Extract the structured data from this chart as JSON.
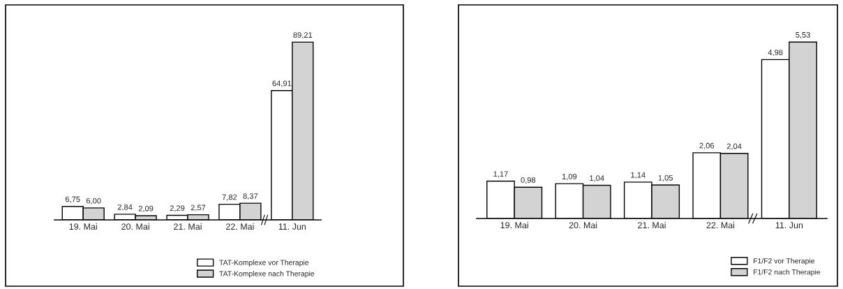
{
  "chart_data": [
    {
      "type": "bar",
      "categories": [
        "19. Mai",
        "20. Mai",
        "21. Mai",
        "22. Mai",
        "11. Jun"
      ],
      "legend": "bottom right",
      "series": [
        {
          "name": "TAT-Komplexe vor Therapie",
          "color": "#ffffff",
          "values": [
            6.75,
            2.84,
            2.29,
            7.82,
            64.91
          ],
          "value_labels": [
            "6,75",
            "2,84",
            "2,29",
            "7,82",
            "64,91"
          ]
        },
        {
          "name": "TAT-Komplexe nach Therapie",
          "color": "#d3d3d3",
          "values": [
            6.0,
            2.09,
            2.57,
            8.37,
            89.21
          ],
          "value_labels": [
            "6,00",
            "2,09",
            "2,57",
            "8,37",
            "89,21"
          ]
        }
      ]
    },
    {
      "type": "bar",
      "categories": [
        "19. Mai",
        "20. Mai",
        "21. Mai",
        "22. Mai",
        "11. Jun"
      ],
      "legend": "bottom right",
      "series": [
        {
          "name": "F1/F2 vor Therapie",
          "color": "#ffffff",
          "values": [
            1.17,
            1.09,
            1.14,
            2.06,
            4.98
          ],
          "value_labels": [
            "1,17",
            "1,09",
            "1,14",
            "2,06",
            "4,98"
          ]
        },
        {
          "name": "F1/F2 nach Therapie",
          "color": "#d3d3d3",
          "values": [
            0.98,
            1.04,
            1.05,
            2.04,
            5.53
          ],
          "value_labels": [
            "0,98",
            "1,04",
            "1,05",
            "2,04",
            "5,53"
          ]
        }
      ]
    }
  ]
}
